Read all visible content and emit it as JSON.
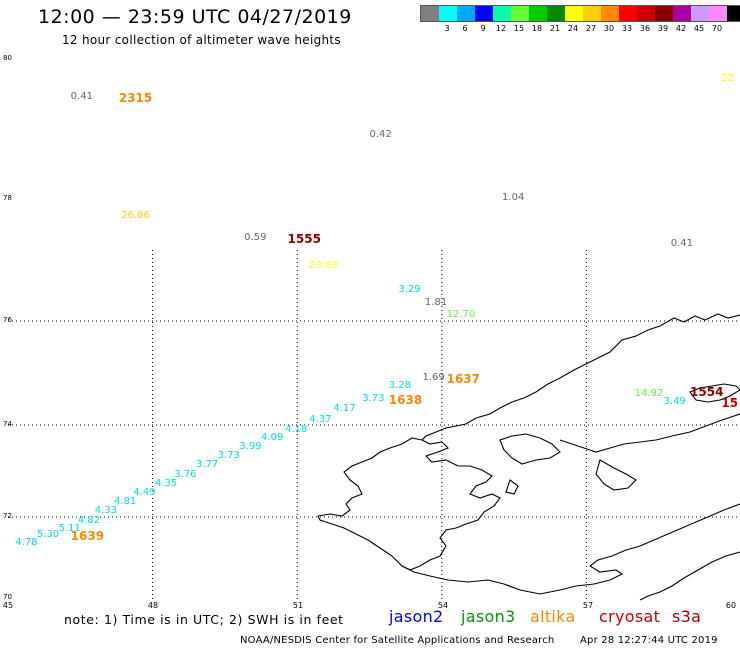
{
  "header": {
    "title": "12:00 — 23:59 UTC 04/27/2019",
    "subtitle": "12 hour collection of altimeter wave heights"
  },
  "scale": {
    "unit": "(ft)",
    "bins": [
      {
        "color": "#808080",
        "label": ""
      },
      {
        "color": "#00ffff",
        "label": "3"
      },
      {
        "color": "#00aaff",
        "label": "6"
      },
      {
        "color": "#0000ff",
        "label": "9"
      },
      {
        "color": "#00ffaa",
        "label": "12"
      },
      {
        "color": "#66ff33",
        "label": "15"
      },
      {
        "color": "#00cc00",
        "label": "18"
      },
      {
        "color": "#008800",
        "label": "21"
      },
      {
        "color": "#ffff00",
        "label": "24"
      },
      {
        "color": "#ffcc00",
        "label": "27"
      },
      {
        "color": "#ff8800",
        "label": "30"
      },
      {
        "color": "#ff0000",
        "label": "33"
      },
      {
        "color": "#cc0000",
        "label": "36"
      },
      {
        "color": "#880000",
        "label": "39"
      },
      {
        "color": "#aa00aa",
        "label": "42"
      },
      {
        "color": "#cc99ff",
        "label": "45"
      },
      {
        "color": "#ff88ff",
        "label": "70"
      },
      {
        "color": "#000000",
        "label": ""
      }
    ]
  },
  "axes": {
    "lat_labels": [
      "80",
      "78",
      "76",
      "74",
      "72",
      "70"
    ],
    "lon_labels": [
      "45",
      "48",
      "51",
      "54",
      "57",
      "60"
    ]
  },
  "observations": [
    {
      "text": "0.41",
      "lon": 46.3,
      "lat": 79.45,
      "color": "#666666"
    },
    {
      "text": "2315",
      "lon": 47.3,
      "lat": 79.45,
      "color": "#ff8800",
      "big": true
    },
    {
      "text": "22",
      "lon": 59.8,
      "lat": 79.7,
      "color": "#ffff00"
    },
    {
      "text": "0.42",
      "lon": 52.5,
      "lat": 78.9,
      "color": "#666666"
    },
    {
      "text": "1.04",
      "lon": 55.25,
      "lat": 78.0,
      "color": "#666666"
    },
    {
      "text": "26.86",
      "lon": 47.35,
      "lat": 77.7,
      "color": "#ffcc00"
    },
    {
      "text": "0.59",
      "lon": 49.9,
      "lat": 77.35,
      "color": "#666666"
    },
    {
      "text": "1555",
      "lon": 50.8,
      "lat": 77.35,
      "color": "#880000",
      "big": true
    },
    {
      "text": "0.41",
      "lon": 58.75,
      "lat": 77.25,
      "color": "#666666"
    },
    {
      "text": "23.03",
      "lon": 51.25,
      "lat": 76.9,
      "color": "#ffff00"
    },
    {
      "text": "3.29",
      "lon": 53.1,
      "lat": 76.5,
      "color": "#00dddd"
    },
    {
      "text": "1.81",
      "lon": 53.65,
      "lat": 76.3,
      "color": "#666666"
    },
    {
      "text": "12.70",
      "lon": 54.1,
      "lat": 76.1,
      "color": "#66ee44"
    },
    {
      "text": "1.69",
      "lon": 53.6,
      "lat": 74.9,
      "color": "#666666"
    },
    {
      "text": "1637",
      "lon": 54.1,
      "lat": 74.9,
      "color": "#ff8800",
      "big": true
    },
    {
      "text": "3.28",
      "lon": 52.9,
      "lat": 74.75,
      "color": "#00dddd"
    },
    {
      "text": "1638",
      "lon": 52.9,
      "lat": 74.5,
      "color": "#ff8800",
      "big": true
    },
    {
      "text": "3.73",
      "lon": 52.35,
      "lat": 74.5,
      "color": "#00dddd"
    },
    {
      "text": "4.17",
      "lon": 51.75,
      "lat": 74.3,
      "color": "#00dddd"
    },
    {
      "text": "4.37",
      "lon": 51.25,
      "lat": 74.1,
      "color": "#00dddd"
    },
    {
      "text": "4.18",
      "lon": 50.75,
      "lat": 73.9,
      "color": "#00dddd"
    },
    {
      "text": "4.09",
      "lon": 50.25,
      "lat": 73.72,
      "color": "#00dddd"
    },
    {
      "text": "3.99",
      "lon": 49.8,
      "lat": 73.52,
      "color": "#00dddd"
    },
    {
      "text": "3.73",
      "lon": 49.35,
      "lat": 73.32,
      "color": "#00dddd"
    },
    {
      "text": "3.77",
      "lon": 48.9,
      "lat": 73.12,
      "color": "#00dddd"
    },
    {
      "text": "3.76",
      "lon": 48.45,
      "lat": 72.92,
      "color": "#00dddd"
    },
    {
      "text": "4.35",
      "lon": 48.05,
      "lat": 72.72,
      "color": "#00dddd"
    },
    {
      "text": "4.49",
      "lon": 47.6,
      "lat": 72.52,
      "color": "#00dddd"
    },
    {
      "text": "4.81",
      "lon": 47.2,
      "lat": 72.32,
      "color": "#00dddd"
    },
    {
      "text": "4.33",
      "lon": 46.8,
      "lat": 72.12,
      "color": "#00dddd"
    },
    {
      "text": "4.82",
      "lon": 46.45,
      "lat": 71.9,
      "color": "#00dddd"
    },
    {
      "text": "5.11",
      "lon": 46.05,
      "lat": 71.7,
      "color": "#00dddd"
    },
    {
      "text": "5.30",
      "lon": 45.6,
      "lat": 71.55,
      "color": "#00dddd"
    },
    {
      "text": "1639",
      "lon": 46.3,
      "lat": 71.55,
      "color": "#ff8800",
      "big": true
    },
    {
      "text": "4.78",
      "lon": 45.15,
      "lat": 71.35,
      "color": "#00dddd"
    },
    {
      "text": "14.92",
      "lon": 58.0,
      "lat": 74.6,
      "color": "#66ee44"
    },
    {
      "text": "1554",
      "lon": 59.15,
      "lat": 74.65,
      "color": "#880000",
      "big": true
    },
    {
      "text": "3.49",
      "lon": 58.6,
      "lat": 74.45,
      "color": "#00dddd"
    },
    {
      "text": "15",
      "lon": 59.8,
      "lat": 74.45,
      "color": "#cc0000",
      "big": true
    }
  ],
  "footer": {
    "note": "note: 1) Time is in UTC; 2) SWH is in feet",
    "satellites": [
      {
        "name": "jason2",
        "color": "#0000ff"
      },
      {
        "name": "jason3",
        "color": "#009900"
      },
      {
        "name": "altika",
        "color": "#ff8800"
      },
      {
        "name": "cryosat",
        "color": "#cc0000"
      },
      {
        "name": "s3a",
        "color": "#aa0000"
      }
    ],
    "credit": "NOAA/NESDIS Center for Satellite Applications and Research",
    "timestamp": "Apr 28 12:27:44 UTC 2019"
  }
}
